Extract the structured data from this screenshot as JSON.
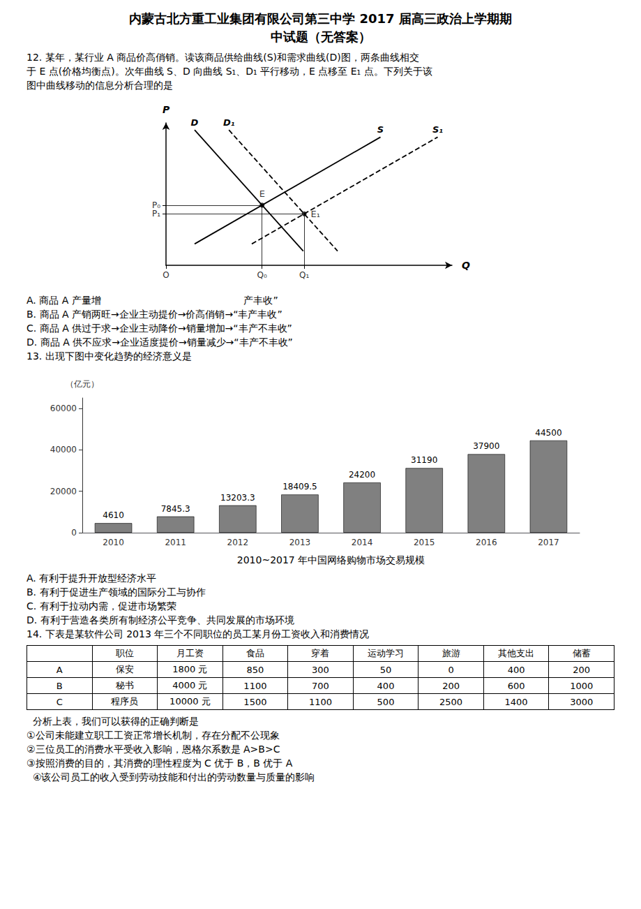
{
  "chart_data": [
    {
      "type": "line",
      "title": [
        "内蒙古北方重工业集团有限公司第三中学 2017 届高三政治上学期期",
        "中试题（无答案）"
      ],
      "subtitle": [
        "12. 某年，某行业 A 商品价高俏销。读该商品供给曲线(S)和需求曲线(D)图，两条曲线相交",
        "于 E 点(价格均衡点)。次年曲线 S、D 向曲线 S₁、D₁ 平行移动，E 点移至 E₁ 点。下列关于该",
        "图中曲线移动的信息分析合理的是"
      ],
      "annotations": [
        "A. 商品 A 产量增                                              产丰收”",
        "B. 商品 A 产销两旺→企业主动提价→价高俏销→“丰产丰收”",
        "C. 商品 A 供过于求→企业主动降价→销量增加→“丰产不丰收”",
        "D. 商品 A 供不应求→企业适度提价→销量减少→“丰产不丰收”"
      ],
      "xlabel": "Q",
      "ylabel": "P",
      "xlim": [
        0,
        10
      ],
      "ylim": [
        0,
        10
      ],
      "xticks": [
        {
          "value": 0,
          "label": "O"
        },
        {
          "value": 3.359402985074627,
          "label": "Q₀"
        },
        {
          "value": 4.831641791044776,
          "label": "Q₁"
        }
      ],
      "yticks": [
        {
          "value": 4.222388059701493,
          "label": "P₀"
        },
        {
          "value": 3.613432835820895,
          "label": "P₁"
        }
      ],
      "grid": false,
      "series": [
        {
          "name": "D",
          "type": "line",
          "color": "#000000",
          "marker": "none",
          "line_style": "solid",
          "x": [
            1.0,
            4.8
          ],
          "values": [
            9.5,
            1.0
          ]
        },
        {
          "name": "D₁",
          "type": "line",
          "color": "#000000",
          "marker": "none",
          "line_style": "dashed",
          "x": [
            2.2,
            6.0
          ],
          "values": [
            9.5,
            1.0
          ]
        },
        {
          "name": "S",
          "type": "line",
          "color": "#000000",
          "marker": "none",
          "line_style": "solid",
          "x": [
            1.0,
            7.5
          ],
          "values": [
            1.5,
            9.0
          ]
        },
        {
          "name": "S₁",
          "type": "line",
          "color": "#000000",
          "marker": "none",
          "line_style": "dashed",
          "x": [
            3.0,
            9.5
          ],
          "values": [
            1.5,
            9.0
          ]
        },
        {
          "name": "E",
          "type": "scatter",
          "color": "#000000",
          "marker": "circle",
          "x": [
            3.359402985074627
          ],
          "values": [
            4.222388059701493
          ]
        },
        {
          "name": "E₁",
          "type": "scatter",
          "color": "#000000",
          "marker": "circle",
          "x": [
            4.831641791044776
          ],
          "values": [
            3.613432835820895
          ]
        }
      ]
    },
    {
      "type": "bar",
      "subtitle": "13. 出现下图中变化趋势的经济意义是",
      "categories": [
        "2010",
        "2011",
        "2012",
        "2013",
        "2014",
        "2015",
        "2016",
        "2017"
      ],
      "values": [
        4610.0,
        7845.3,
        13203.3,
        18409.5,
        24200.0,
        31190.0,
        37900.0,
        44500.0
      ],
      "color": "#808080",
      "xlabel": "2010~2017 年中国网络购物市场交易规模",
      "ylabel": "（亿元）",
      "ylim": [
        0,
        65000
      ],
      "yticks": [
        0,
        20000,
        40000,
        60000
      ],
      "grid": false,
      "data_labels": true,
      "annotations": [
        "A. 有利于提升开放型经济水平",
        "B. 有利于促进生产领域的国际分工与协作",
        "C. 有利于拉动内需，促进市场繁荣",
        "D. 有利于营造各类所有制经济公平竞争、共同发展的市场环境"
      ]
    },
    {
      "type": "table",
      "subtitle": "14. 下表是某软件公司 2013 年三个不同职位的员工某月份工资收入和消费情况",
      "columns": [
        null,
        "职位",
        "月工资",
        "食品",
        "穿着",
        "运动学习",
        "旅游",
        "其他支出",
        "储蓄"
      ],
      "rows": [
        [
          "A",
          "保安",
          "1800 元",
          "850",
          "300",
          "50",
          "0",
          "400",
          "200"
        ],
        [
          "B",
          "秘书",
          "4000 元",
          "1100",
          "700",
          "400",
          "200",
          "600",
          "1000"
        ],
        [
          "C",
          "程序员",
          "10000 元",
          "1500",
          "1100",
          "500",
          "2500",
          "1400",
          "3000"
        ]
      ],
      "annotations": [
        "  分析上表，我们可以获得的正确判断是",
        "①公司未能建立职工工资正常增长机制，存在分配不公现象",
        "②三位员工的消费水平受收入影响，恩格尔系数是 A>B>C",
        "③按照消费的目的，其消费的理性程度为 C 优于 B，B 优于 A",
        "  ④该公司员工的收入受到劳动技能和付出的劳动数量与质量的影响"
      ]
    }
  ]
}
